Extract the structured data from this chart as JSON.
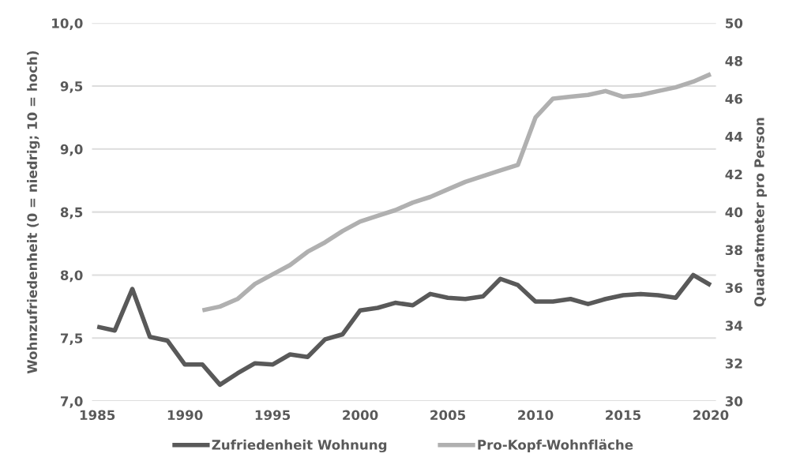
{
  "chart_data": {
    "type": "line",
    "ylabel": "Wohnzufriedenheit (0 = niedrig; 10 = hoch)",
    "y2label": "Quadratmeter pro Person",
    "xlim": [
      1984.7,
      2020.3
    ],
    "xticks": [
      1985,
      1990,
      1995,
      2000,
      2005,
      2010,
      2015,
      2020
    ],
    "ylim": [
      7.0,
      10.0
    ],
    "yticks": [
      {
        "value": 7.0,
        "label": "7,0"
      },
      {
        "value": 7.5,
        "label": "7,5"
      },
      {
        "value": 8.0,
        "label": "8,0"
      },
      {
        "value": 8.5,
        "label": "8,5"
      },
      {
        "value": 9.0,
        "label": "9,0"
      },
      {
        "value": 9.5,
        "label": "9,5"
      },
      {
        "value": 10.0,
        "label": "10,0"
      }
    ],
    "y2lim": [
      30,
      50
    ],
    "y2ticks": [
      30,
      32,
      34,
      36,
      38,
      40,
      42,
      44,
      46,
      48,
      50
    ],
    "grid": "y",
    "legend": "bottom",
    "series": [
      {
        "name": "Zufriedenheit Wohnung",
        "color": "#595959",
        "x": [
          1985,
          1986,
          1987,
          1988,
          1989,
          1990,
          1991,
          1992,
          1993,
          1994,
          1995,
          1996,
          1997,
          1998,
          1999,
          2000,
          2001,
          2002,
          2003,
          2004,
          2005,
          2006,
          2007,
          2008,
          2009,
          2010,
          2011,
          2012,
          2013,
          2014,
          2015,
          2016,
          2017,
          2018,
          2019,
          2020
        ],
        "values": [
          7.59,
          7.56,
          7.89,
          7.51,
          7.48,
          7.29,
          7.29,
          7.13,
          7.22,
          7.3,
          7.29,
          7.37,
          7.35,
          7.49,
          7.53,
          7.72,
          7.74,
          7.78,
          7.76,
          7.85,
          7.82,
          7.81,
          7.83,
          7.97,
          7.92,
          7.79,
          7.79,
          7.81,
          7.77,
          7.81,
          7.84,
          7.85,
          7.84,
          7.82,
          8.0,
          7.92
        ]
      },
      {
        "name": "Pro-Kopf-Wohnfläche",
        "color": "#b0b0b0",
        "axis": "y2",
        "x": [
          1991,
          1992,
          1993,
          1994,
          1995,
          1996,
          1997,
          1998,
          1999,
          2000,
          2001,
          2002,
          2003,
          2004,
          2005,
          2006,
          2007,
          2008,
          2009,
          2010,
          2011,
          2012,
          2013,
          2014,
          2015,
          2016,
          2017,
          2018,
          2019,
          2020
        ],
        "values": [
          34.8,
          35.0,
          35.4,
          36.2,
          36.7,
          37.2,
          37.9,
          38.4,
          39.0,
          39.5,
          39.8,
          40.1,
          40.5,
          40.8,
          41.2,
          41.6,
          41.9,
          42.2,
          42.5,
          45.0,
          46.0,
          46.1,
          46.2,
          46.4,
          46.1,
          46.2,
          46.4,
          46.6,
          46.9,
          47.3
        ]
      }
    ]
  }
}
